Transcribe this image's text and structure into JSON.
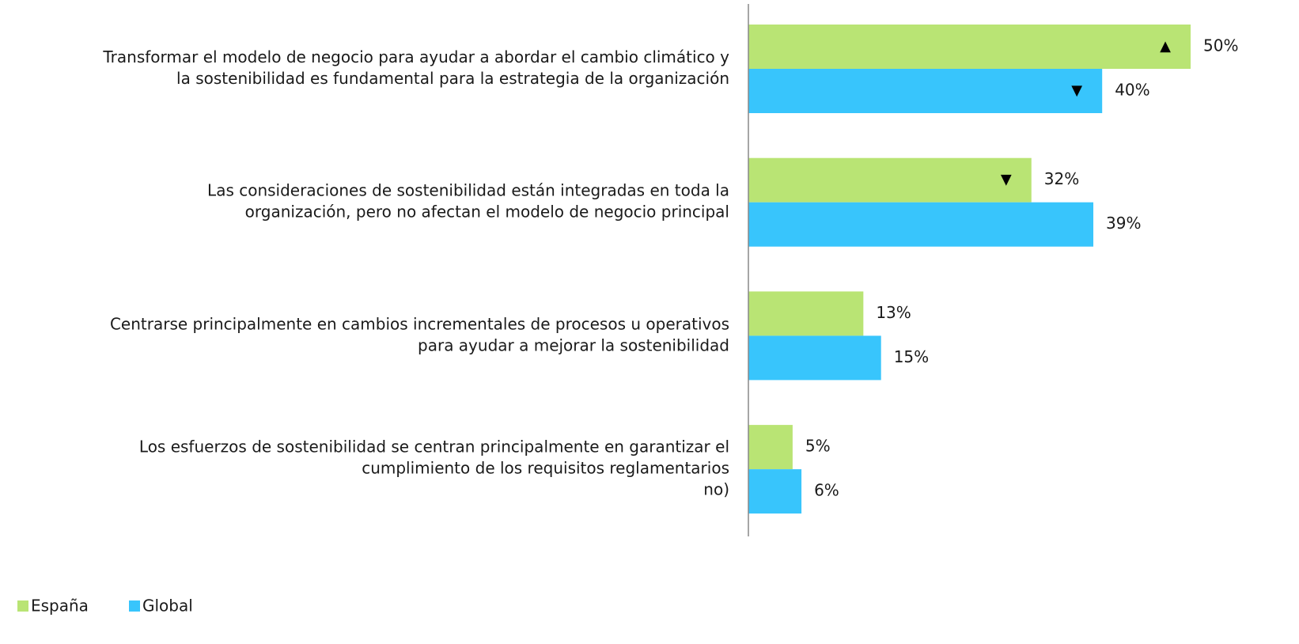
{
  "chart_data": {
    "type": "bar",
    "orientation": "horizontal",
    "categories": [
      [
        "Transformar el modelo de negocio para ayudar a abordar el cambio climático y",
        "la sostenibilidad es fundamental para la estrategia de la organización"
      ],
      [
        "Las consideraciones de sostenibilidad están integradas en toda la",
        "organización, pero no afectan el modelo de negocio principal"
      ],
      [
        "Centrarse principalmente en cambios incrementales de procesos u operativos",
        "para ayudar a mejorar la sostenibilidad"
      ],
      [
        "Los esfuerzos de sostenibilidad se centran principalmente en garantizar el",
        "cumplimiento de los requisitos reglamentarios",
        "no)"
      ]
    ],
    "series": [
      {
        "name": "España",
        "color": "#b9e474",
        "values": [
          50,
          32,
          13,
          5
        ],
        "value_labels": [
          "50%",
          "32%",
          "13%",
          "5%"
        ],
        "value_markers": [
          "▲",
          "▼",
          null,
          null
        ]
      },
      {
        "name": "Global",
        "color": "#38c5fc",
        "values": [
          40,
          39,
          15,
          6
        ],
        "value_labels": [
          "40%",
          "39%",
          "15%",
          "6%"
        ],
        "value_markers": [
          "▼",
          null,
          null,
          null
        ]
      }
    ],
    "xlim": [
      0,
      50
    ],
    "legend": "bottom-left"
  }
}
